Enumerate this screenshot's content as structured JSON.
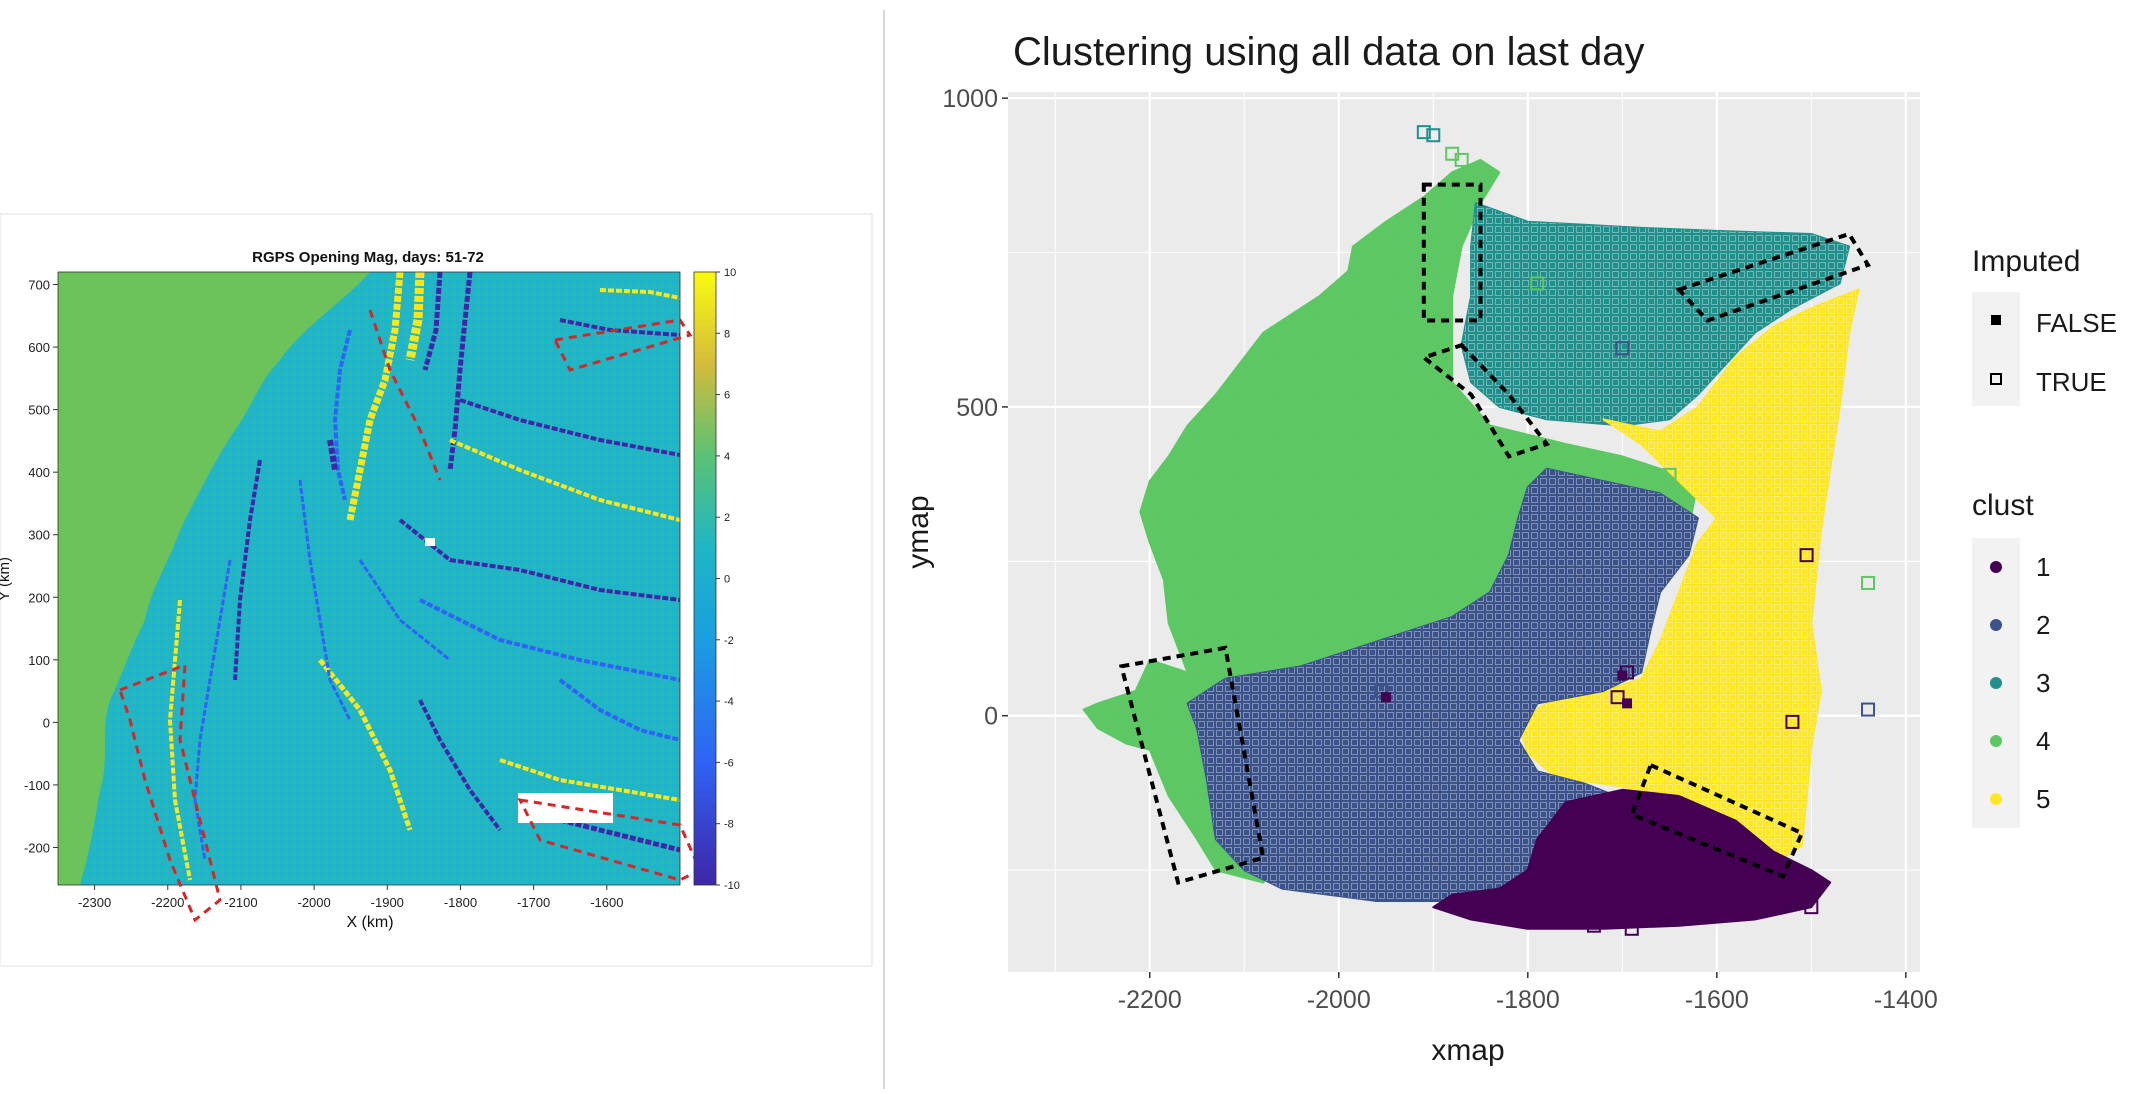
{
  "chart_data": [
    {
      "type": "heatmap",
      "title": "RGPS Opening Mag, days: 51-72",
      "xlabel": "X (km)",
      "ylabel": "Y (km)",
      "xlim": [
        -2350,
        -1500
      ],
      "ylim": [
        -260,
        720
      ],
      "xticks": [
        "-2300",
        "-2200",
        "-2100",
        "-2000",
        "-1900",
        "-1800",
        "-1700",
        "-1600"
      ],
      "yticks": [
        "700",
        "600",
        "500",
        "400",
        "300",
        "200",
        "100",
        "0",
        "-100",
        "-200"
      ],
      "colorbar": {
        "min": -10,
        "max": 10,
        "ticks": [
          "10",
          "8",
          "6",
          "4",
          "2",
          "0",
          "-2",
          "-4",
          "-6",
          "-8",
          "-10"
        ]
      },
      "colors": {
        "land": "#6cc35a",
        "background": "#1fb6c5",
        "high": "#f9e71e",
        "low": "#3e26a8"
      }
    },
    {
      "type": "scatter",
      "title": "Clustering using all data on last day",
      "xlabel": "xmap",
      "ylabel": "ymap",
      "xlim": [
        -2350,
        -1385
      ],
      "ylim": [
        -415,
        1010
      ],
      "xticks": [
        -2200,
        -2000,
        -1800,
        -1600,
        -1400
      ],
      "yticks": [
        0,
        500,
        1000
      ],
      "grid": true,
      "legend_placement": "right",
      "legend": {
        "imputed_title": "Imputed",
        "imputed": [
          "FALSE",
          "TRUE"
        ],
        "clust_title": "clust",
        "clusters": [
          {
            "label": "1",
            "color": "#440154"
          },
          {
            "label": "2",
            "color": "#3b528b"
          },
          {
            "label": "3",
            "color": "#21908c"
          },
          {
            "label": "4",
            "color": "#5dc863"
          },
          {
            "label": "5",
            "color": "#fde725"
          }
        ]
      },
      "regions": [
        {
          "cluster": 4,
          "polygon": [
            [
              -2160,
              70
            ],
            [
              -2200,
              90
            ],
            [
              -2215,
              40
            ],
            [
              -2255,
              20
            ],
            [
              -2270,
              10
            ],
            [
              -2255,
              -20
            ],
            [
              -2225,
              -45
            ],
            [
              -2200,
              -55
            ],
            [
              -2180,
              -130
            ],
            [
              -2150,
              -200
            ],
            [
              -2130,
              -250
            ],
            [
              -2080,
              -270
            ],
            [
              -2060,
              -230
            ],
            [
              -2110,
              -150
            ],
            [
              -2120,
              -40
            ],
            [
              -2140,
              20
            ],
            [
              -2100,
              60
            ],
            [
              -2000,
              80
            ],
            [
              -1950,
              100
            ],
            [
              -1850,
              150
            ],
            [
              -1760,
              200
            ],
            [
              -1680,
              260
            ],
            [
              -1630,
              300
            ],
            [
              -1620,
              380
            ],
            [
              -1700,
              420
            ],
            [
              -1760,
              440
            ],
            [
              -1840,
              470
            ],
            [
              -1880,
              540
            ],
            [
              -1880,
              680
            ],
            [
              -1870,
              760
            ],
            [
              -1850,
              830
            ],
            [
              -1830,
              880
            ],
            [
              -1850,
              900
            ],
            [
              -1880,
              880
            ],
            [
              -1910,
              840
            ],
            [
              -1950,
              800
            ],
            [
              -1985,
              760
            ],
            [
              -1990,
              720
            ],
            [
              -2020,
              680
            ],
            [
              -2060,
              640
            ],
            [
              -2080,
              620
            ],
            [
              -2100,
              580
            ],
            [
              -2130,
              520
            ],
            [
              -2160,
              470
            ],
            [
              -2180,
              420
            ],
            [
              -2200,
              380
            ],
            [
              -2210,
              330
            ],
            [
              -2200,
              280
            ],
            [
              -2185,
              220
            ],
            [
              -2180,
              150
            ]
          ]
        },
        {
          "cluster": 3,
          "polygon": [
            [
              -1855,
              830
            ],
            [
              -1800,
              800
            ],
            [
              -1740,
              795
            ],
            [
              -1680,
              790
            ],
            [
              -1600,
              785
            ],
            [
              -1500,
              780
            ],
            [
              -1460,
              760
            ],
            [
              -1470,
              700
            ],
            [
              -1520,
              660
            ],
            [
              -1560,
              620
            ],
            [
              -1590,
              570
            ],
            [
              -1620,
              520
            ],
            [
              -1650,
              480
            ],
            [
              -1700,
              470
            ],
            [
              -1780,
              480
            ],
            [
              -1830,
              500
            ],
            [
              -1860,
              540
            ],
            [
              -1870,
              600
            ],
            [
              -1860,
              680
            ],
            [
              -1860,
              760
            ]
          ]
        },
        {
          "cluster": 5,
          "polygon": [
            [
              -1720,
              480
            ],
            [
              -1660,
              460
            ],
            [
              -1620,
              500
            ],
            [
              -1580,
              580
            ],
            [
              -1540,
              630
            ],
            [
              -1500,
              660
            ],
            [
              -1450,
              690
            ],
            [
              -1460,
              620
            ],
            [
              -1470,
              500
            ],
            [
              -1480,
              400
            ],
            [
              -1490,
              300
            ],
            [
              -1500,
              150
            ],
            [
              -1490,
              40
            ],
            [
              -1500,
              -50
            ],
            [
              -1510,
              -210
            ],
            [
              -1530,
              -230
            ],
            [
              -1580,
              -200
            ],
            [
              -1620,
              -160
            ],
            [
              -1680,
              -120
            ],
            [
              -1720,
              -110
            ],
            [
              -1770,
              -100
            ],
            [
              -1800,
              -60
            ],
            [
              -1810,
              -10
            ],
            [
              -1780,
              20
            ],
            [
              -1720,
              40
            ],
            [
              -1680,
              60
            ],
            [
              -1660,
              120
            ],
            [
              -1640,
              200
            ],
            [
              -1620,
              280
            ],
            [
              -1600,
              320
            ],
            [
              -1640,
              380
            ],
            [
              -1680,
              440
            ]
          ]
        },
        {
          "cluster": 2,
          "polygon": [
            [
              -1780,
              400
            ],
            [
              -1720,
              380
            ],
            [
              -1660,
              360
            ],
            [
              -1620,
              320
            ],
            [
              -1630,
              260
            ],
            [
              -1660,
              200
            ],
            [
              -1670,
              140
            ],
            [
              -1680,
              70
            ],
            [
              -1720,
              40
            ],
            [
              -1790,
              20
            ],
            [
              -1810,
              -40
            ],
            [
              -1790,
              -90
            ],
            [
              -1740,
              -110
            ],
            [
              -1690,
              -140
            ],
            [
              -1640,
              -170
            ],
            [
              -1600,
              -200
            ],
            [
              -1620,
              -230
            ],
            [
              -1700,
              -250
            ],
            [
              -1800,
              -290
            ],
            [
              -1880,
              -300
            ],
            [
              -1960,
              -300
            ],
            [
              -2060,
              -280
            ],
            [
              -2100,
              -250
            ],
            [
              -2130,
              -200
            ],
            [
              -2140,
              -100
            ],
            [
              -2150,
              -20
            ],
            [
              -2160,
              20
            ],
            [
              -2120,
              60
            ],
            [
              -2040,
              80
            ],
            [
              -1960,
              120
            ],
            [
              -1880,
              160
            ],
            [
              -1840,
              200
            ],
            [
              -1820,
              260
            ],
            [
              -1810,
              320
            ],
            [
              -1800,
              370
            ]
          ]
        },
        {
          "cluster": 1,
          "polygon": [
            [
              -1760,
              -140
            ],
            [
              -1700,
              -120
            ],
            [
              -1640,
              -130
            ],
            [
              -1580,
              -170
            ],
            [
              -1540,
              -220
            ],
            [
              -1500,
              -250
            ],
            [
              -1480,
              -270
            ],
            [
              -1500,
              -310
            ],
            [
              -1560,
              -330
            ],
            [
              -1640,
              -340
            ],
            [
              -1720,
              -345
            ],
            [
              -1800,
              -345
            ],
            [
              -1860,
              -330
            ],
            [
              -1900,
              -310
            ],
            [
              -1880,
              -290
            ],
            [
              -1830,
              -280
            ],
            [
              -1800,
              -250
            ],
            [
              -1790,
              -200
            ]
          ]
        }
      ],
      "annotation_boxes": [
        {
          "corners": [
            [
              -1910,
              860
            ],
            [
              -1850,
              860
            ],
            [
              -1850,
              640
            ],
            [
              -1910,
              640
            ]
          ]
        },
        {
          "corners": [
            [
              -1870,
              600
            ],
            [
              -1820,
              520
            ],
            [
              -1780,
              440
            ],
            [
              -1820,
              420
            ],
            [
              -1860,
              520
            ],
            [
              -1910,
              580
            ]
          ]
        },
        {
          "corners": [
            [
              -1640,
              690
            ],
            [
              -1460,
              780
            ],
            [
              -1440,
              730
            ],
            [
              -1610,
              640
            ]
          ]
        },
        {
          "corners": [
            [
              -2230,
              80
            ],
            [
              -2120,
              110
            ],
            [
              -2080,
              -230
            ],
            [
              -2170,
              -270
            ]
          ]
        },
        {
          "corners": [
            [
              -1670,
              -80
            ],
            [
              -1510,
              -190
            ],
            [
              -1530,
              -260
            ],
            [
              -1690,
              -160
            ]
          ]
        }
      ],
      "imputed_points": [
        {
          "x": -1910,
          "y": 945,
          "cluster": 3
        },
        {
          "x": -1900,
          "y": 940,
          "cluster": 3
        },
        {
          "x": -1880,
          "y": 910,
          "cluster": 4
        },
        {
          "x": -1870,
          "y": 900,
          "cluster": 4
        },
        {
          "x": -1700,
          "y": 595,
          "cluster": 2
        },
        {
          "x": -1650,
          "y": 390,
          "cluster": 4
        },
        {
          "x": -1440,
          "y": 215,
          "cluster": 4
        },
        {
          "x": -1505,
          "y": 260,
          "cluster": 1
        },
        {
          "x": -1440,
          "y": 10,
          "cluster": 2
        },
        {
          "x": -1520,
          "y": -10,
          "cluster": 1
        },
        {
          "x": -1695,
          "y": 70,
          "cluster": 1
        },
        {
          "x": -1705,
          "y": 30,
          "cluster": 1
        },
        {
          "x": -1955,
          "y": 40,
          "cluster": 2
        },
        {
          "x": -1690,
          "y": -345,
          "cluster": 1
        },
        {
          "x": -1730,
          "y": -340,
          "cluster": 1
        },
        {
          "x": -1500,
          "y": -310,
          "cluster": 1
        },
        {
          "x": -1790,
          "y": 700,
          "cluster": 4
        }
      ],
      "observed_points": [
        {
          "x": -1950,
          "y": 30,
          "cluster": 1
        },
        {
          "x": -1700,
          "y": 65,
          "cluster": 1
        },
        {
          "x": -1695,
          "y": 20,
          "cluster": 1
        }
      ]
    }
  ]
}
